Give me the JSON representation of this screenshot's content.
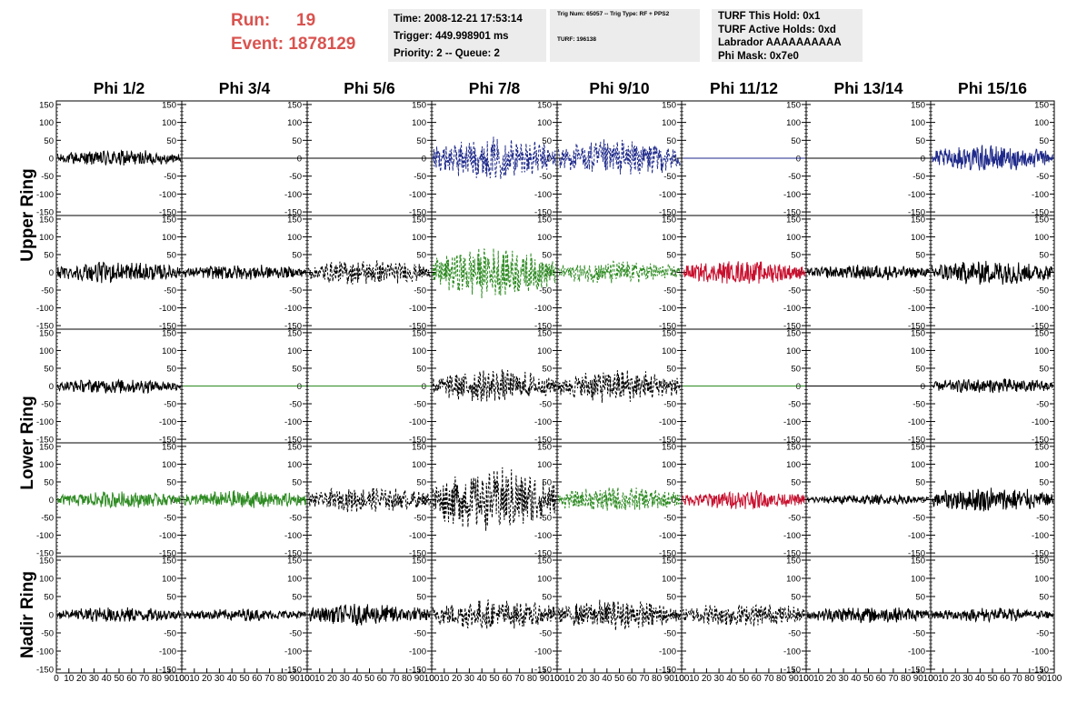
{
  "header": {
    "run_label": "Run:",
    "run_value": "19",
    "event_label": "Event:",
    "event_value": "1878129",
    "time": "Time: 2008-12-21 17:53:14",
    "trigger": "Trigger: 449.998901 ms",
    "priority": "Priority: 2 -- Queue: 2",
    "trig_line1": "Trig Num: 65057 -- Trig Type: RF + PPS2",
    "trig_line2": "TURF: 196138",
    "turf_hold": "TURF This Hold: 0x1",
    "turf_active": "TURF Active Holds: 0xd",
    "labrador": "Labrador AAAAAAAAAA",
    "phi_mask": "Phi Mask: 0x7e0"
  },
  "colors": {
    "header_accent": "#d9534f",
    "blue": "#1f2a8a",
    "green": "#2e8b22",
    "red": "#c8102e",
    "black": "#000000"
  },
  "chart_data": {
    "type": "line",
    "columns": [
      "Phi 1/2",
      "Phi 3/4",
      "Phi 5/6",
      "Phi 7/8",
      "Phi 9/10",
      "Phi 11/12",
      "Phi 13/14",
      "Phi 15/16"
    ],
    "rows": [
      "Upper Ring",
      "Upper Ring",
      "Lower Ring",
      "Lower Ring",
      "Nadir Ring"
    ],
    "row_labels": [
      "Upper Ring",
      "Lower Ring",
      "Nadir Ring"
    ],
    "ylim": [
      -160,
      160
    ],
    "xlim": [
      0,
      100
    ],
    "y_ticks_left": [
      -150,
      -100,
      -50,
      0,
      50,
      100,
      150
    ],
    "y_ticks_right": [
      -150,
      -100,
      -50,
      0,
      50,
      100,
      150
    ],
    "y_tick_labels_left": [
      "-150",
      "-100",
      "-50",
      "0",
      "50",
      "100",
      "150"
    ],
    "y_tick_labels_right": [
      "-150",
      "-100",
      "-50",
      "0",
      "50",
      "100",
      "150"
    ],
    "x_ticks": [
      0,
      10,
      20,
      30,
      40,
      50,
      60,
      70,
      80,
      90,
      100
    ],
    "x_tick_labels": [
      "0",
      "10",
      "20",
      "30",
      "40",
      "50",
      "60",
      "70",
      "80",
      "90",
      "100"
    ],
    "panels": [
      [
        {
          "color": "black",
          "style": "solid",
          "amp": 20
        },
        {
          "color": "black",
          "style": "solid",
          "amp": 0
        },
        {
          "color": "black",
          "style": "solid",
          "amp": 0
        },
        {
          "color": "blue",
          "style": "dashed",
          "amp": 50
        },
        {
          "color": "blue",
          "style": "dashed",
          "amp": 45
        },
        {
          "color": "blue",
          "style": "solid",
          "amp": 0
        },
        {
          "color": "black",
          "style": "solid",
          "amp": 0
        },
        {
          "color": "blue",
          "style": "solid",
          "amp": 30
        }
      ],
      [
        {
          "color": "black",
          "style": "solid",
          "amp": 25
        },
        {
          "color": "black",
          "style": "solid",
          "amp": 18
        },
        {
          "color": "black",
          "style": "dashed",
          "amp": 30
        },
        {
          "color": "green",
          "style": "dashed",
          "amp": 60
        },
        {
          "color": "green",
          "style": "dashed",
          "amp": 28
        },
        {
          "color": "red",
          "style": "solid",
          "amp": 28
        },
        {
          "color": "black",
          "style": "solid",
          "amp": 18
        },
        {
          "color": "black",
          "style": "solid",
          "amp": 30
        }
      ],
      [
        {
          "color": "black",
          "style": "solid",
          "amp": 18
        },
        {
          "color": "green",
          "style": "solid",
          "amp": 0
        },
        {
          "color": "green",
          "style": "solid",
          "amp": 0
        },
        {
          "color": "black",
          "style": "dashed",
          "amp": 40
        },
        {
          "color": "black",
          "style": "dashed",
          "amp": 40
        },
        {
          "color": "green",
          "style": "solid",
          "amp": 0
        },
        {
          "color": "black",
          "style": "solid",
          "amp": 0
        },
        {
          "color": "black",
          "style": "solid",
          "amp": 18
        }
      ],
      [
        {
          "color": "green",
          "style": "solid",
          "amp": 20
        },
        {
          "color": "green",
          "style": "solid",
          "amp": 22
        },
        {
          "color": "black",
          "style": "dashed",
          "amp": 30
        },
        {
          "color": "black",
          "style": "dashed",
          "amp": 75
        },
        {
          "color": "green",
          "style": "dashed",
          "amp": 30
        },
        {
          "color": "red",
          "style": "solid",
          "amp": 22
        },
        {
          "color": "black",
          "style": "solid",
          "amp": 12
        },
        {
          "color": "black",
          "style": "solid",
          "amp": 30
        }
      ],
      [
        {
          "color": "black",
          "style": "solid",
          "amp": 18
        },
        {
          "color": "black",
          "style": "solid",
          "amp": 14
        },
        {
          "color": "black",
          "style": "solid",
          "amp": 25
        },
        {
          "color": "black",
          "style": "dashed",
          "amp": 35
        },
        {
          "color": "black",
          "style": "dashed",
          "amp": 35
        },
        {
          "color": "black",
          "style": "dashed",
          "amp": 28
        },
        {
          "color": "black",
          "style": "solid",
          "amp": 20
        },
        {
          "color": "black",
          "style": "solid",
          "amp": 16
        }
      ]
    ]
  }
}
